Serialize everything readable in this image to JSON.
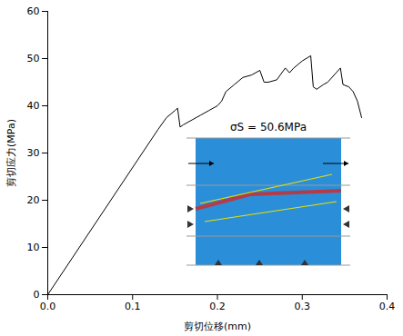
{
  "chart_data": {
    "type": "line",
    "x_label": "剪切位移(mm)",
    "y_label": "剪切应力(MPa)",
    "annotation": "σS = 50.6MPa",
    "color": "#000000",
    "xlim": [
      0,
      0.4
    ],
    "xticks": [
      {
        "value": 0,
        "label": "0.0"
      },
      0.1,
      0.2,
      0.3,
      0.4
    ],
    "ylim": [
      0,
      60
    ],
    "yticks": [
      0,
      10,
      20,
      30,
      40,
      50,
      60
    ],
    "grid": false,
    "x": [
      0,
      0.13,
      0.14,
      0.15,
      0.153,
      0.156,
      0.16,
      0.17,
      0.18,
      0.19,
      0.2,
      0.205,
      0.21,
      0.22,
      0.23,
      0.24,
      0.25,
      0.255,
      0.26,
      0.27,
      0.28,
      0.285,
      0.29,
      0.3,
      0.31,
      0.313,
      0.317,
      0.325,
      0.33,
      0.34,
      0.345,
      0.348,
      0.355,
      0.36,
      0.365,
      0.37
    ],
    "values": [
      0,
      35,
      37.5,
      39,
      39.5,
      35.5,
      36,
      37,
      38,
      39,
      40,
      41,
      43,
      44.5,
      46,
      46.5,
      47.5,
      45,
      45,
      45.5,
      48,
      47,
      48,
      49.5,
      50.6,
      44,
      43.5,
      44.5,
      45,
      47,
      48,
      44.5,
      44,
      43,
      41,
      37.5
    ]
  }
}
